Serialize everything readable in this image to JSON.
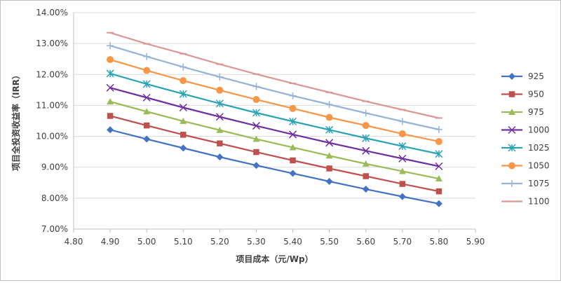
{
  "chart_data": {
    "type": "line",
    "title": "",
    "xlabel": "项目成本（元/Wp）",
    "ylabel": "项目全投资收益率（IRR）",
    "xlim": [
      4.8,
      5.9
    ],
    "ylim": [
      7.0,
      14.0
    ],
    "x_ticks": [
      "4.80",
      "4.90",
      "5.00",
      "5.10",
      "5.20",
      "5.30",
      "5.40",
      "5.50",
      "5.60",
      "5.70",
      "5.80",
      "5.90"
    ],
    "y_ticks": [
      "7.00%",
      "8.00%",
      "9.00%",
      "10.00%",
      "11.00%",
      "12.00%",
      "13.00%",
      "14.00%"
    ],
    "grid": "horizontal",
    "legend_position": "right",
    "x": [
      4.9,
      5.0,
      5.1,
      5.2,
      5.3,
      5.4,
      5.5,
      5.6,
      5.7,
      5.8
    ],
    "series": [
      {
        "name": "925",
        "color": "#4472c4",
        "marker": "diamond",
        "values": [
          10.21,
          9.91,
          9.62,
          9.33,
          9.06,
          8.8,
          8.54,
          8.29,
          8.05,
          7.82
        ]
      },
      {
        "name": "950",
        "color": "#c0504d",
        "marker": "square",
        "values": [
          10.66,
          10.35,
          10.05,
          9.77,
          9.49,
          9.22,
          8.96,
          8.71,
          8.46,
          8.22
        ]
      },
      {
        "name": "975",
        "color": "#9bbb59",
        "marker": "triangle",
        "values": [
          11.12,
          10.8,
          10.49,
          10.2,
          9.91,
          9.64,
          9.37,
          9.11,
          8.87,
          8.63
        ]
      },
      {
        "name": "1000",
        "color": "#7030a0",
        "marker": "x",
        "values": [
          11.57,
          11.25,
          10.93,
          10.63,
          10.34,
          10.06,
          9.79,
          9.53,
          9.28,
          9.03
        ]
      },
      {
        "name": "1025",
        "color": "#2aa3b5",
        "marker": "star",
        "values": [
          12.03,
          11.69,
          11.37,
          11.06,
          10.76,
          10.48,
          10.21,
          9.94,
          9.68,
          9.43
        ]
      },
      {
        "name": "1050",
        "color": "#f79646",
        "marker": "circle",
        "values": [
          12.48,
          12.13,
          11.8,
          11.49,
          11.19,
          10.9,
          10.61,
          10.35,
          10.08,
          9.83
        ]
      },
      {
        "name": "1075",
        "color": "#95b3d7",
        "marker": "plus",
        "values": [
          12.93,
          12.58,
          12.24,
          11.92,
          11.61,
          11.31,
          11.03,
          10.75,
          10.48,
          10.22
        ]
      },
      {
        "name": "1100",
        "color": "#d99795",
        "marker": "dash",
        "values": [
          13.35,
          12.99,
          12.67,
          12.33,
          12.01,
          11.71,
          11.42,
          11.13,
          10.86,
          10.59
        ]
      }
    ]
  }
}
